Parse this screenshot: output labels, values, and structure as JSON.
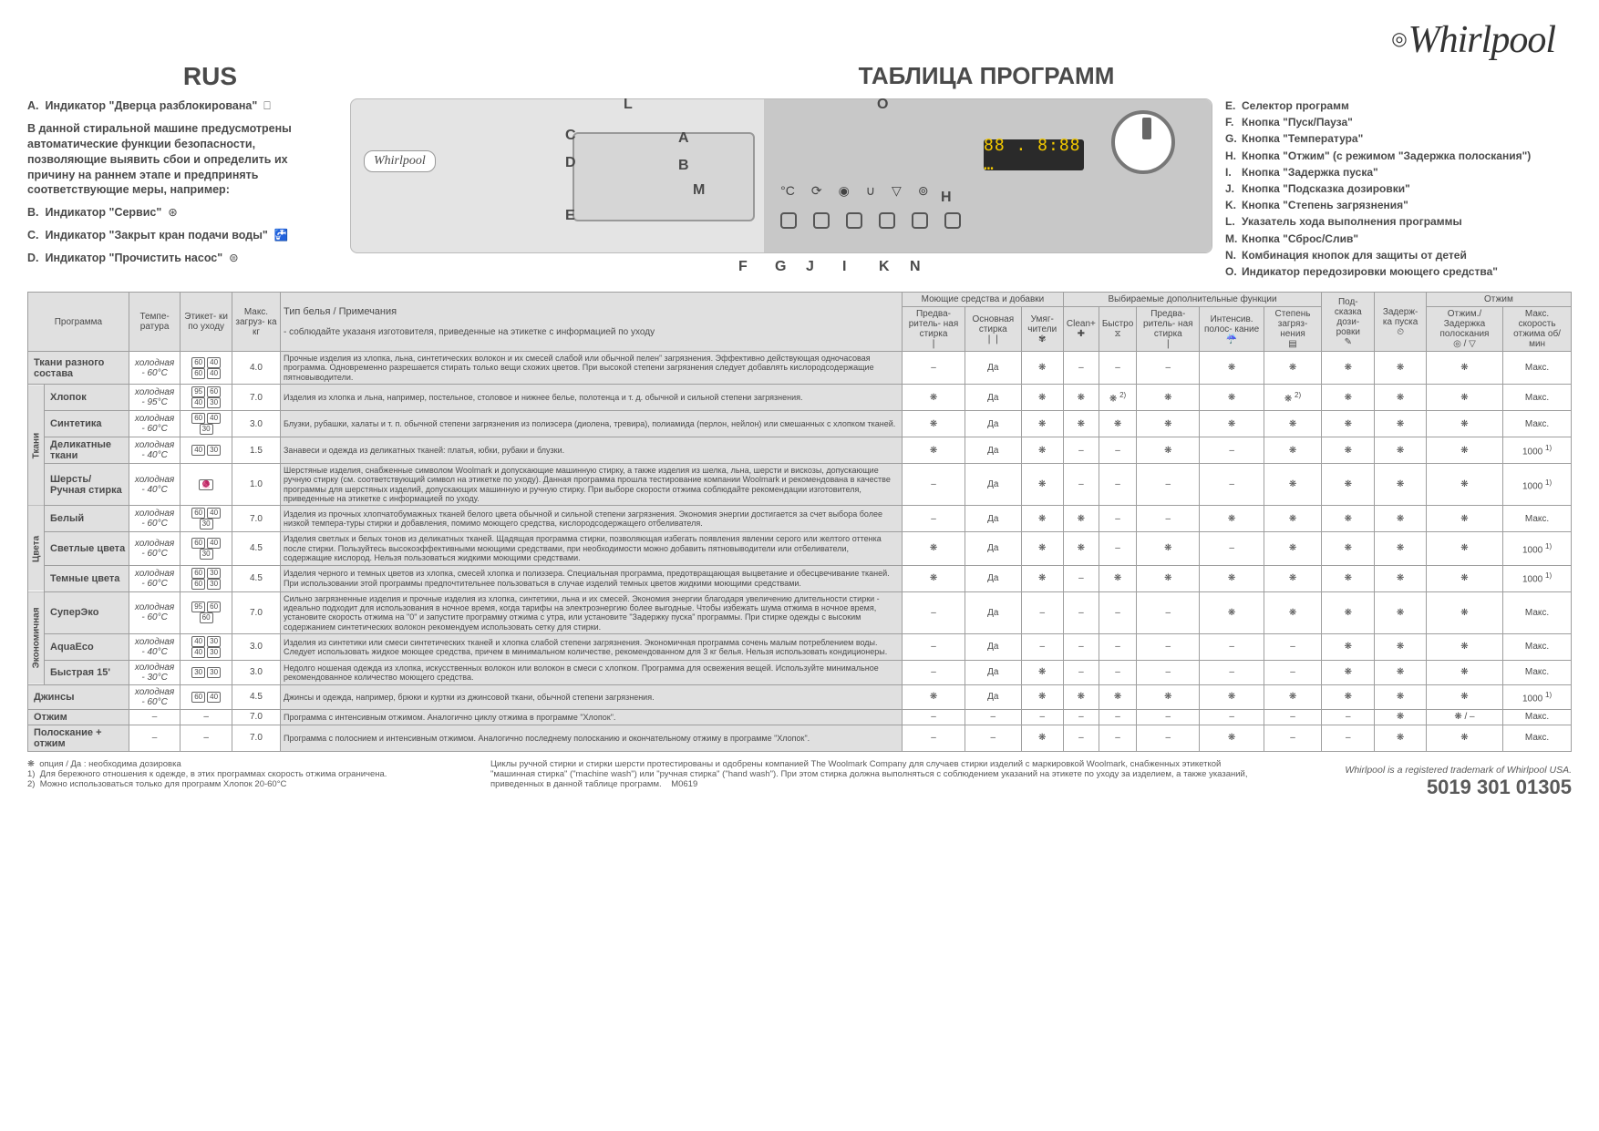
{
  "brand": "Whirlpool",
  "lang_code": "RUS",
  "main_title": "ТАБЛИЦА ПРОГРАММ",
  "left_legend": {
    "A": "Индикатор \"Дверца разблокирована\"",
    "intro": "В данной стиральной машине предусмотрены автоматические функции безопасности, позволяющие выявить сбои и определить их причину на раннем этапе и предпринять соответствующие меры, например:",
    "B": "Индикатор \"Сервис\"",
    "C": "Индикатор \"Закрыт кран подачи воды\"",
    "D": "Индикатор \"Прочистить насос\""
  },
  "panel": {
    "display_text": "88 . 8:88 …"
  },
  "callouts": [
    "A",
    "B",
    "C",
    "D",
    "E",
    "F",
    "G",
    "H",
    "I",
    "J",
    "K",
    "L",
    "M",
    "N",
    "O"
  ],
  "right_legend": [
    {
      "l": "E.",
      "t": "Селектор программ"
    },
    {
      "l": "F.",
      "t": "Кнопка \"Пуск/Пауза\""
    },
    {
      "l": "G.",
      "t": "Кнопка \"Температура\""
    },
    {
      "l": "H.",
      "t": "Кнопка \"Отжим\"  (с режимом \"Задержка полоскания\")"
    },
    {
      "l": "I.",
      "t": "Кнопка \"Задержка пуска\""
    },
    {
      "l": "J.",
      "t": "Кнопка \"Подсказка дозировки\""
    },
    {
      "l": "K.",
      "t": "Кнопка \"Степень загрязнения\""
    },
    {
      "l": "L.",
      "t": "Указатель хода выполнения программы"
    },
    {
      "l": "M.",
      "t": "Кнопка \"Сброс/Слив\""
    },
    {
      "l": "N.",
      "t": "Комбинация кнопок для защиты от детей"
    },
    {
      "l": "O.",
      "t": "Индикатор передозировки моющего средства\""
    }
  ],
  "table_headers": {
    "program": "Программа",
    "temp": "Темпе-\nратура",
    "care": "Этикет-\nки по\nуходу",
    "maxload": "Макс.\nзагруз-\nка\n\nкг",
    "type_title": "Тип белья / Примечания",
    "type_note": "- соблюдайте указаня изготовителя, приведенные на этикетке с информацией по уходу",
    "detergent_group": "Моющие средства и добавки",
    "options_group": "Выбираемые дополнительные функции",
    "d_pre": "Предва-\nритель-\nная\nстирка",
    "d_main": "Основная\nстирка",
    "d_soft": "Умяг-\nчители",
    "o_clean": "Clean+",
    "o_fast": "Быстро",
    "o_pre": "Предва-\nритель-\nная\nстирка",
    "o_int": "Интенсив.\nполос-\nкание",
    "o_soil": "Степень\nзагряз-\nнения",
    "dose": "Под-\nсказка\nдози-\nровки",
    "delay": "Задерж-\nка\nпуска",
    "spin_group": "Отжим",
    "spin_hold": "Отжим./\nЗадержка\nполоскания",
    "spin_max": "Макс.\nскорость\nотжима\n\nоб/мин"
  },
  "side_groups": {
    "g1": "Ткани",
    "g2": "Цвета",
    "g3": "Экономичная"
  },
  "rows": [
    {
      "name": "Ткани разного состава",
      "temp": "холодная - 60°C",
      "care": [
        "60",
        "40",
        "60",
        "40"
      ],
      "load": "4.0",
      "notes": "Прочные изделия из хлопка, льна, синтетических волокон и их смесей слабой или обычной пелен” загрязнения. Эффективно действующая одночасовая программа. Одновременно разрешается стирать только вещи схожих цветов. При высокой степени загрязнения следует добавлять кислородсодержащие пятновыводители.",
      "c": [
        "–",
        "Да",
        "❋",
        "–",
        "–",
        "–",
        "❋",
        "❋",
        "❋",
        "❋",
        "❋",
        "Макс."
      ]
    },
    {
      "name": "Хлопок",
      "temp": "холодная - 95°C",
      "care": [
        "95",
        "60",
        "40",
        "30"
      ],
      "load": "7.0",
      "notes": "Изделия из хлопка и льна, например, постельное, столовое и нижнее белье, полотенца и т. д. обычной и сильной степени загрязнения.",
      "c": [
        "❋",
        "Да",
        "❋",
        "❋",
        "❋ 2)",
        "❋",
        "❋",
        "❋ 2)",
        "❋",
        "❋",
        "❋",
        "Макс."
      ]
    },
    {
      "name": "Синтетика",
      "temp": "холодная - 60°C",
      "care": [
        "60",
        "40",
        "30"
      ],
      "load": "3.0",
      "notes": "Блузки, рубашки, халаты и т. п. обычной степени загрязнения из полиэсера (диолена, тревира), полиамида (перлон, нейлон) или смешанных с хлопком тканей.",
      "c": [
        "❋",
        "Да",
        "❋",
        "❋",
        "❋",
        "❋",
        "❋",
        "❋",
        "❋",
        "❋",
        "❋",
        "Макс."
      ]
    },
    {
      "name": "Деликатные ткани",
      "temp": "холодная - 40°C",
      "care": [
        "40",
        "30"
      ],
      "load": "1.5",
      "notes": "Занавеси и одежда из деликатных тканей: платья, юбки, рубаки и блузки.",
      "c": [
        "❋",
        "Да",
        "❋",
        "–",
        "–",
        "❋",
        "–",
        "❋",
        "❋",
        "❋",
        "❋",
        "1000 1)"
      ]
    },
    {
      "name": "Шерсть/ Ручная стирка",
      "temp": "холодная - 40°C",
      "care": [
        "wool"
      ],
      "load": "1.0",
      "notes": "Шерстяные изделия, снабженные символом Woolmark и допускающие машинную стирку, а также изделия из шелка, льна, шерсти и вискозы, допускающие ручную стирку (см. соответствующий символ на этикетке по уходу). Данная программа прошла тестирование компании Woolmark и рекомендована в качестве программы для шерстяных изделий, допускающих машинную и ручную стирку. При выборе скорости отжима соблюдайте рекомендации изготовителя, приведенные на этикетке с информацией по уходу.",
      "c": [
        "–",
        "Да",
        "❋",
        "–",
        "–",
        "–",
        "–",
        "❋",
        "❋",
        "❋",
        "❋",
        "1000 1)"
      ]
    },
    {
      "name": "Белый",
      "temp": "холодная - 60°C",
      "care": [
        "60",
        "40",
        "30"
      ],
      "load": "7.0",
      "notes": "Изделия из прочных хлопчатобумажных тканей белого цвета обычной и сильной степени загрязнения. Экономия энергии достигается за счет выбора более низкой темпера-туры стирки и добавления, помимо моющего средства, кислородсодержащего отбеливателя.",
      "c": [
        "–",
        "Да",
        "❋",
        "❋",
        "–",
        "–",
        "❋",
        "❋",
        "❋",
        "❋",
        "❋",
        "Макс."
      ]
    },
    {
      "name": "Светлые цвета",
      "temp": "холодная - 60°C",
      "care": [
        "60",
        "40",
        "30"
      ],
      "load": "4.5",
      "notes": "Изделия светлых и белых тонов из деликатных тканей. Щадящая программа стирки, позволяющая избегать появления явлении серого или желтого оттенка после стирки. Пользуйтесь высокоэффективными моющими средствами, при необходимости можно добавить пятновыводители или отбеливатели, содержащие кислород. Нельзя пользоваться жидкими моющими средствами.",
      "c": [
        "❋",
        "Да",
        "❋",
        "❋",
        "–",
        "❋",
        "–",
        "❋",
        "❋",
        "❋",
        "❋",
        "1000 1)"
      ]
    },
    {
      "name": "Темные цвета",
      "temp": "холодная - 60°C",
      "care": [
        "60",
        "30",
        "60",
        "30"
      ],
      "load": "4.5",
      "notes": "Изделия черного и темных цветов из хлопка, смесей хлопка и полиэзера. Специальная программа, предотвращающая выцветание и обесцвечивание тканей. При использовании этой программы предпочтительнее пользоваться в случае изделий темных цветов жидкими моющими средствами.",
      "c": [
        "❋",
        "Да",
        "❋",
        "–",
        "❋",
        "❋",
        "❋",
        "❋",
        "❋",
        "❋",
        "❋",
        "1000 1)"
      ]
    },
    {
      "name": "СуперЭко",
      "temp": "холодная - 60°C",
      "care": [
        "95",
        "60",
        "60"
      ],
      "load": "7.0",
      "notes": "Сильно загрязненные изделия и прочные изделия из хлопка, синтетики, льна и их смесей. Экономия энергии благодаря увеличению длительности стирки - идеально подходит для использования в ночное время, когда тарифы на электроэнергию более выгодные. Чтобы избежать шума отжима в ночное время, установите скорость отжима на \"0\" и запустите программу отжима с утра, или установите \"Задержку пуска\" программы. При стирке одежды с высоким содержанием синтетических волокон рекомендуем использовать сетку для стирки.",
      "c": [
        "–",
        "Да",
        "–",
        "–",
        "–",
        "–",
        "❋",
        "❋",
        "❋",
        "❋",
        "❋",
        "Макс."
      ]
    },
    {
      "name": "AquaEco",
      "temp": "холодная - 40°C",
      "care": [
        "40",
        "30",
        "40",
        "30"
      ],
      "load": "3.0",
      "notes": "Изделия из синтетики или смеси синтетических тканей и хлопка слабой степени загрязнения. Экономичная программа сочень малым потреблением воды. Следует использовать жидкое моющее средства, причем в минимальном количестве, рекомендованном для 3 кг белья. Нельзя использовать кондиционеры.",
      "c": [
        "–",
        "Да",
        "–",
        "–",
        "–",
        "–",
        "–",
        "–",
        "❋",
        "❋",
        "❋",
        "Макс."
      ]
    },
    {
      "name": "Быстрая 15'",
      "temp": "холодная - 30°C",
      "care": [
        "30",
        "30"
      ],
      "load": "3.0",
      "notes": "Недолго ношеная одежда из хлопка, искусственных волокон или волокон в смеси с хлопком. Программа для освежения вещей. Используйте минимальное рекомендованное количество моющего средства.",
      "c": [
        "–",
        "Да",
        "❋",
        "–",
        "–",
        "–",
        "–",
        "–",
        "❋",
        "❋",
        "❋",
        "Макс."
      ]
    },
    {
      "name": "Джинсы",
      "temp": "холодная - 60°C",
      "care": [
        "60",
        "40"
      ],
      "load": "4.5",
      "notes": "Джинсы и одежда, например, брюки и куртки из джинсовой ткани, обычной степени загрязнения.",
      "c": [
        "❋",
        "Да",
        "❋",
        "❋",
        "❋",
        "❋",
        "❋",
        "❋",
        "❋",
        "❋",
        "❋",
        "1000 1)"
      ]
    },
    {
      "name": "Отжим",
      "temp": "–",
      "care": [],
      "load": "7.0",
      "notes": "Программа с интенсивным отжимом. Аналогично циклу отжима в программе \"Хлопок\".",
      "c": [
        "–",
        "–",
        "–",
        "–",
        "–",
        "–",
        "–",
        "–",
        "–",
        "❋",
        "❋ / –",
        "Макс."
      ]
    },
    {
      "name": "Полоскание + отжим",
      "temp": "–",
      "care": [],
      "load": "7.0",
      "notes": "Программа с полоснием и интенсивным отжимом. Аналогично последнему полосканию и окончательному отжиму в программе \"Хлопок\".",
      "c": [
        "–",
        "–",
        "❋",
        "–",
        "–",
        "–",
        "❋",
        "–",
        "–",
        "❋",
        "❋",
        "Макс."
      ]
    }
  ],
  "footnotes": {
    "star": "опция / Да : необходима дозировка",
    "f1": "Для бережного отношения к одежде, в этих программах скорость отжима ограничена.",
    "f2": "Можно использоваться только для программ Хлопок 20-60°C",
    "wool": "Циклы ручной стирки и стирки шерсти протестированы и одобрены компанией The Woolmark Company для случаев стирки изделий с маркировкой Woolmark, снабженных этикеткой \"машинная стирка\" (\"machine wash\") или \"ручная стирка\" (\"hand wash\"). При этом стирка должна выполняться с соблюдением указаний на этикете по уходу за изделием, а также указаний, приведенных в данной таблице программ.",
    "code": "M0619"
  },
  "trademark": {
    "reg": "Whirlpool is a registered trademark of Whirlpool USA.",
    "num": "5019 301 01305"
  }
}
